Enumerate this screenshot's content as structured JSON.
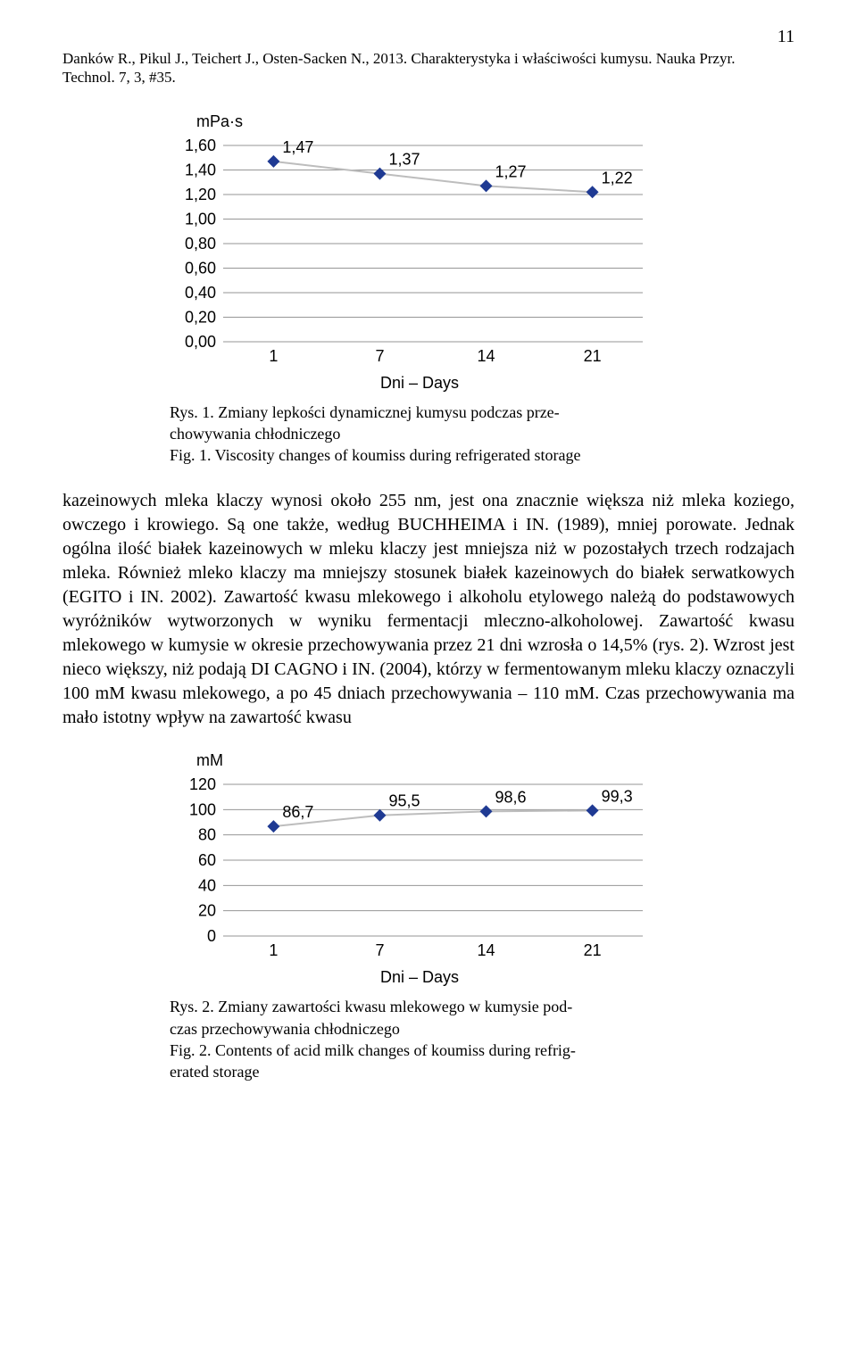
{
  "page_number": "11",
  "citation_line1": "Danków R., Pikul J., Teichert J., Osten-Sacken N., 2013. Charakterystyka i właściwości kumysu. Nauka Przyr.",
  "citation_line2": "Technol. 7, 3, #35.",
  "chart1": {
    "y_unit": "mPa·s",
    "x_label": "Dni – Days",
    "ylim": [
      0.0,
      1.6
    ],
    "yticks": [
      "0,00",
      "0,20",
      "0,40",
      "0,60",
      "0,80",
      "1,00",
      "1,20",
      "1,40",
      "1,60"
    ],
    "xticks": [
      "1",
      "7",
      "14",
      "21"
    ],
    "values": [
      1.47,
      1.37,
      1.27,
      1.22
    ],
    "value_labels": [
      "1,47",
      "1,37",
      "1,27",
      "1,22"
    ],
    "marker_color": "#1f3a93",
    "line_color": "#bdbdbd",
    "grid_color": "#969696",
    "tick_fontsize": 18
  },
  "caption1_line1": "Rys. 1. Zmiany lepkości dynamicznej kumysu podczas prze-",
  "caption1_line2": "chowywania chłodniczego",
  "caption1_line3": "Fig. 1. Viscosity changes of koumiss during refrigerated storage",
  "body": "kazeinowych mleka klaczy wynosi około 255 nm, jest ona znacznie większa niż mleka koziego, owczego i krowiego. Są one także, według BUCHHEIMA i IN. (1989), mniej porowate. Jednak ogólna ilość białek kazeinowych w mleku klaczy jest mniejsza niż w pozostałych trzech rodzajach mleka. Również mleko klaczy ma mniejszy stosunek białek kazeinowych do białek serwatkowych (EGITO i IN. 2002). Zawartość kwasu mlekowego i alkoholu etylowego należą do podstawowych wyróżników wytworzonych w wyniku fermentacji mleczno-alkoholowej. Zawartość kwasu mlekowego w kumysie w okresie przechowywania przez 21 dni wzrosła o 14,5% (rys. 2). Wzrost jest nieco większy, niż podają DI CAGNO i IN. (2004), którzy w fermentowanym mleku klaczy oznaczyli 100 mM kwasu mlekowego, a po 45 dniach przechowywania – 110 mM. Czas przechowywania ma mało istotny wpływ na zawartość kwasu",
  "chart2": {
    "y_unit": "mM",
    "x_label": "Dni – Days",
    "ylim": [
      0,
      120
    ],
    "yticks": [
      "0",
      "20",
      "40",
      "60",
      "80",
      "100",
      "120"
    ],
    "xticks": [
      "1",
      "7",
      "14",
      "21"
    ],
    "values": [
      86.7,
      95.5,
      98.6,
      99.3
    ],
    "value_labels": [
      "86,7",
      "95,5",
      "98,6",
      "99,3"
    ],
    "marker_color": "#1f3a93",
    "line_color": "#bdbdbd",
    "grid_color": "#969696",
    "tick_fontsize": 18
  },
  "caption2_line1": "Rys. 2. Zmiany zawartości kwasu mlekowego w kumysie pod-",
  "caption2_line2": "czas przechowywania chłodniczego",
  "caption2_line3": "Fig. 2. Contents of acid milk changes of koumiss during refrig-",
  "caption2_line4": "erated storage"
}
